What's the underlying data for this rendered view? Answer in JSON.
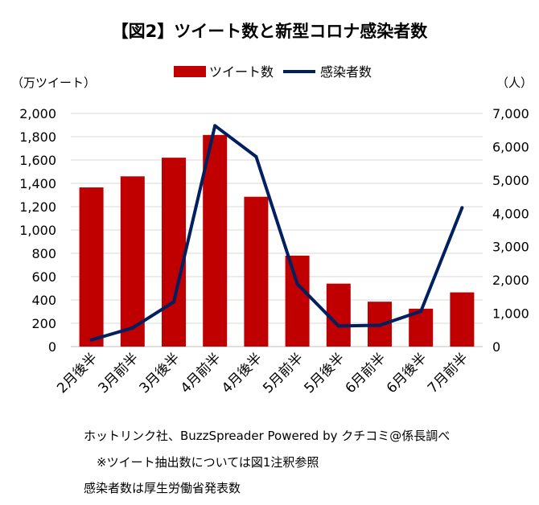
{
  "chart_data": {
    "type": "bar+line",
    "title": "【図2】ツイート数と新型コロナ感染者数",
    "categories": [
      "2月後半",
      "3月前半",
      "3月後半",
      "4月前半",
      "4月後半",
      "5月前半",
      "5月後半",
      "6月前半",
      "6月後半",
      "7月前半"
    ],
    "series": [
      {
        "name": "ツイート数",
        "type": "bar",
        "axis": "left",
        "color": "#C00000",
        "values": [
          1365,
          1460,
          1620,
          1815,
          1285,
          780,
          540,
          385,
          325,
          465
        ]
      },
      {
        "name": "感染者数",
        "type": "line",
        "axis": "right",
        "color": "#002060",
        "values": [
          200,
          560,
          1340,
          6630,
          5700,
          1880,
          620,
          640,
          1060,
          4170
        ]
      }
    ],
    "y_left": {
      "label": "（万ツイート）",
      "ylim": [
        0,
        2000
      ],
      "ticks": [
        "0",
        "200",
        "400",
        "600",
        "800",
        "1,000",
        "1,200",
        "1,400",
        "1,600",
        "1,800",
        "2,000"
      ]
    },
    "y_right": {
      "label": "（人）",
      "ylim": [
        0,
        7000
      ],
      "ticks": [
        "0",
        "1,000",
        "2,000",
        "3,000",
        "4,000",
        "5,000",
        "6,000",
        "7,000"
      ]
    },
    "grid": true,
    "legend_position": "top"
  },
  "notes": {
    "source": "ホットリンク社、BuzzSpreader Powered by クチコミ@係長調べ",
    "footnote": "※ツイート抽出数については図1注釈参照",
    "cases_source": "感染者数は厚生労働省発表数"
  }
}
